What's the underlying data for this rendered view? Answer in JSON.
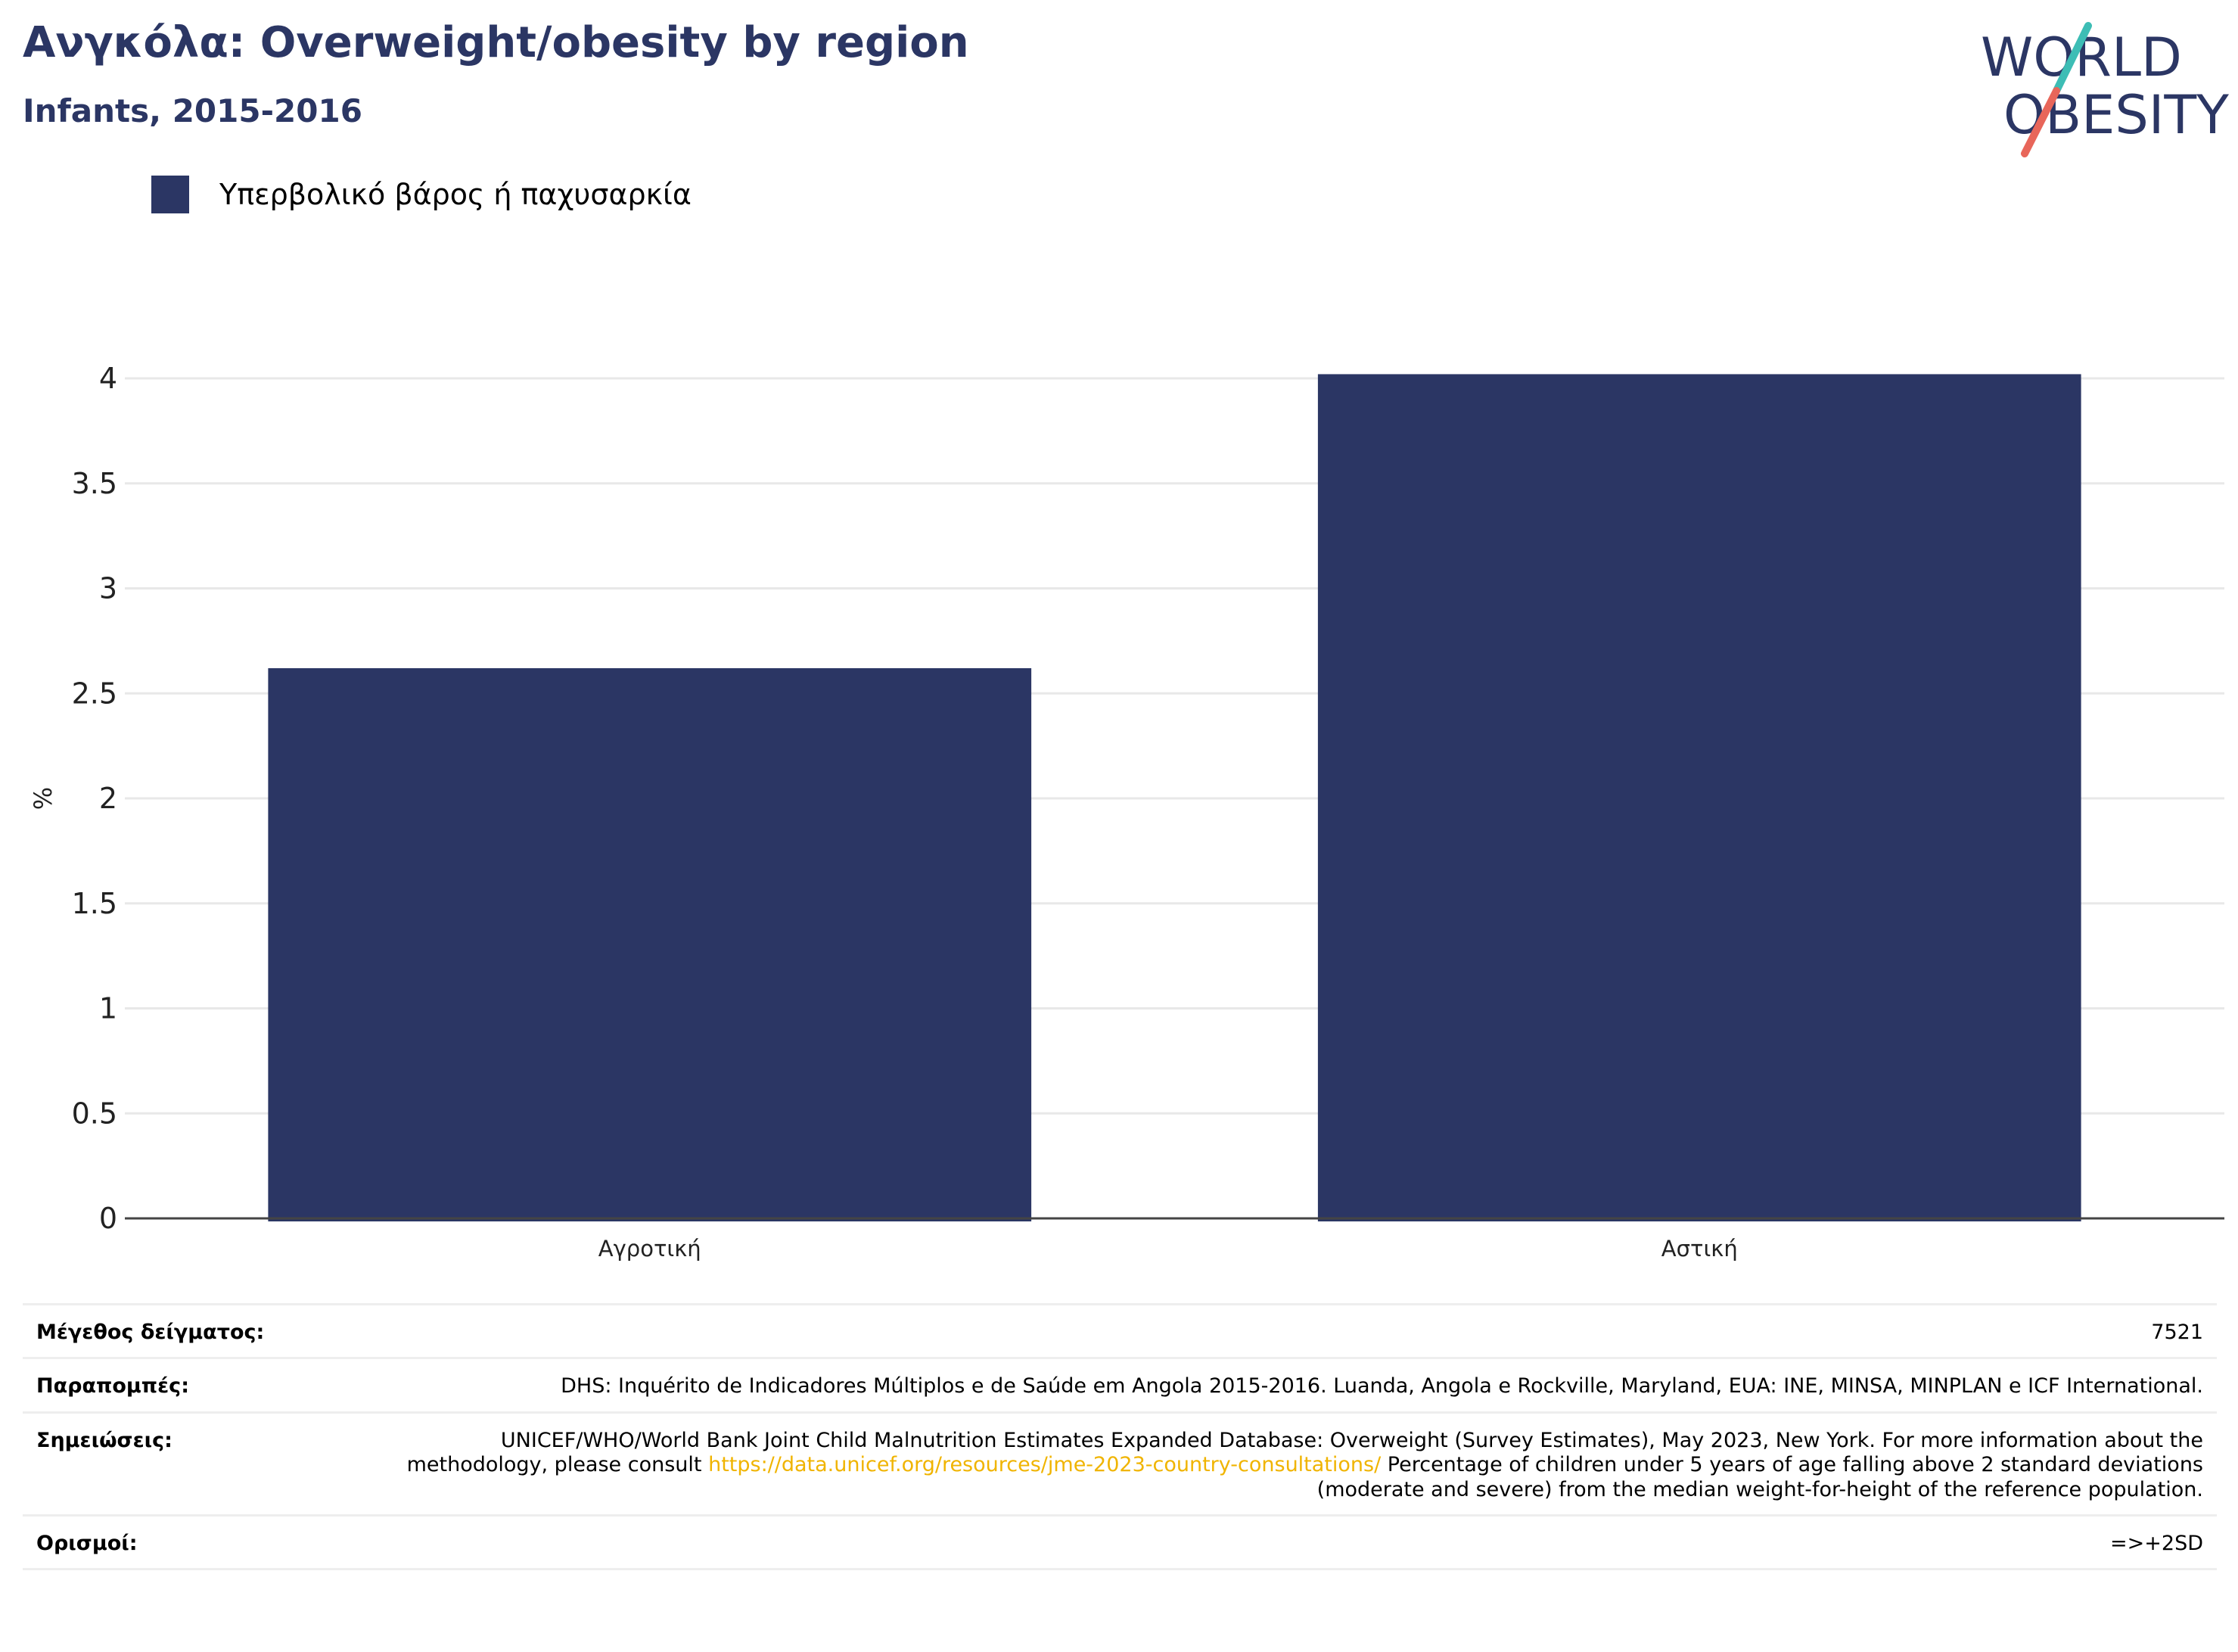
{
  "header": {
    "title": "Ανγκόλα: Overweight/obesity by region",
    "subtitle": "Infants, 2015-2016"
  },
  "logo": {
    "line1": "WORLD",
    "line2": "OBESITY"
  },
  "colors": {
    "bar": "#2b3664",
    "title": "#2b3664",
    "logo_teal": "#3dbdb5",
    "logo_red": "#e8665a",
    "link": "#f0b400"
  },
  "chart_data": {
    "type": "bar",
    "categories": [
      "Αγροτική",
      "Αστική"
    ],
    "series": [
      {
        "name": "Υπερβολικό βάρος ή παχυσαρκία",
        "values": [
          2.62,
          4.02
        ]
      }
    ],
    "ylabel": "%",
    "xlabel": "",
    "ylim": [
      0,
      4
    ],
    "yticks": [
      0,
      0.5,
      1,
      1.5,
      2,
      2.5,
      3,
      3.5,
      4
    ],
    "ytick_labels": [
      "0",
      "0.5",
      "1",
      "1.5",
      "2",
      "2.5",
      "3",
      "3.5",
      "4"
    ],
    "grid": true,
    "legend_position": "top-left"
  },
  "footer": {
    "sample_label": "Μέγεθος δείγματος:",
    "sample_value": "7521",
    "refs_label": "Παραπομπές:",
    "refs_value": "DHS: Inquérito de Indicadores Múltiplos e de Saúde em Angola 2015-2016. Luanda, Angola e Rockville, Maryland, EUA: INE, MINSA, MINPLAN e ICF International.",
    "notes_label": "Σημειώσεις:",
    "notes_before": "UNICEF/WHO/World Bank Joint Child Malnutrition Estimates Expanded Database: Overweight (Survey Estimates), May 2023, New York. For more information about the methodology, please consult ",
    "notes_link": "https://data.unicef.org/resources/jme-2023-country-consultations/",
    "notes_after": " Percentage of children under 5 years of age falling above 2 standard deviations (moderate and severe) from the median weight-for-height of the reference population.",
    "defs_label": "Ορισμοί:",
    "defs_value": "=>+2SD"
  }
}
